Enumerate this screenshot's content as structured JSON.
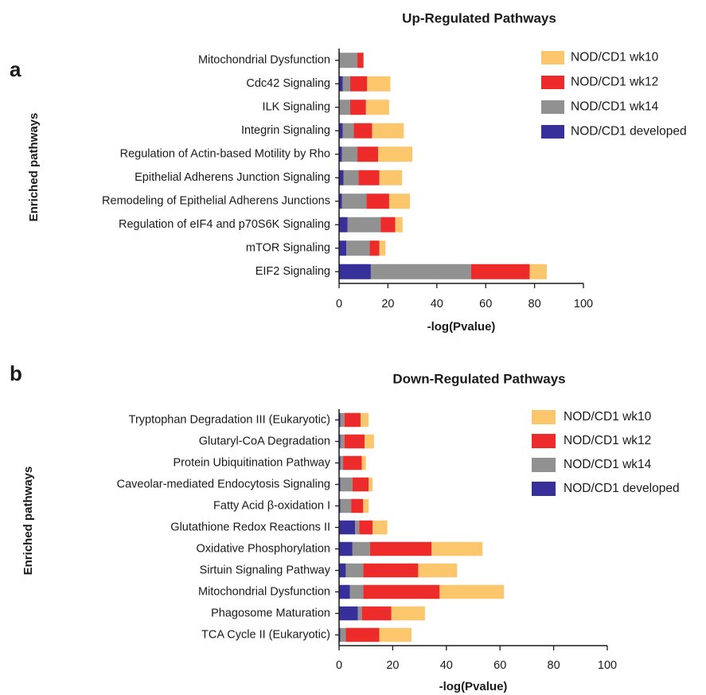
{
  "colors": {
    "NOD/CD1 developed": "#38309a",
    "NOD/CD1 wk14": "#919191",
    "NOD/CD1 wk12": "#ee2b2b",
    "NOD/CD1 wk10": "#fcc66c",
    "axis": "#1a1a1a"
  },
  "chart_data": [
    {
      "type": "bar",
      "orientation": "horizontal",
      "stacked": true,
      "panel_label": "a",
      "title": "Up-Regulated Pathways",
      "xlabel": "-log(Pvalue)",
      "ylabel": "Enriched pathways",
      "xlim": [
        0,
        100
      ],
      "xticks": [
        0,
        20,
        40,
        60,
        80,
        100
      ],
      "legend_position": "top-right",
      "legend_order": [
        "NOD/CD1 wk10",
        "NOD/CD1 wk12",
        "NOD/CD1 wk14",
        "NOD/CD1 developed"
      ],
      "categories": [
        "Mitochondrial Dysfunction",
        "Cdc42 Signaling",
        "ILK Signaling",
        "Integrin Signaling",
        "Regulation of Actin-based Motility by Rho",
        "Epithelial Adherens Junction Signaling",
        "Remodeling of Epithelial Adherens Junctions",
        "Regulation of eIF4 and p70S6K Signaling",
        "mTOR Signaling",
        "EIF2 Signaling"
      ],
      "series": [
        {
          "name": "NOD/CD1 developed",
          "values": [
            0,
            1.5,
            0,
            1.5,
            1.2,
            1.8,
            1.2,
            3.5,
            3,
            13
          ]
        },
        {
          "name": "NOD/CD1 wk14",
          "values": [
            7.5,
            3,
            4.5,
            4.5,
            6.3,
            6.2,
            10,
            13.5,
            9.5,
            41
          ]
        },
        {
          "name": "NOD/CD1 wk12",
          "values": [
            2.5,
            7,
            6.5,
            7.5,
            8.5,
            8.5,
            9.3,
            6,
            4,
            24
          ]
        },
        {
          "name": "NOD/CD1 wk10",
          "values": [
            0,
            9.5,
            9.5,
            13,
            14,
            9.3,
            8.5,
            3,
            2.5,
            7
          ]
        }
      ]
    },
    {
      "type": "bar",
      "orientation": "horizontal",
      "stacked": true,
      "panel_label": "b",
      "title": "Down-Regulated Pathways",
      "xlabel": "-log(Pvalue)",
      "ylabel": "Enriched pathways",
      "xlim": [
        0,
        100
      ],
      "xticks": [
        0,
        20,
        40,
        60,
        80,
        100
      ],
      "legend_position": "top-right",
      "legend_order": [
        "NOD/CD1 wk10",
        "NOD/CD1 wk12",
        "NOD/CD1 wk14",
        "NOD/CD1 developed"
      ],
      "categories": [
        "Tryptophan Degradation III (Eukaryotic)",
        "Glutaryl-CoA Degradation",
        "Protein Ubiquitination Pathway",
        "Caveolar-mediated Endocytosis Signaling",
        "Fatty Acid β-oxidation I",
        "Glutathione Redox Reactions II",
        "Oxidative Phosphorylation",
        "Sirtuin Signaling Pathway",
        "Mitochondrial Dysfunction",
        "Phagosome Maturation",
        "TCA Cycle II (Eukaryotic)"
      ],
      "series": [
        {
          "name": "NOD/CD1 developed",
          "values": [
            0.5,
            0.5,
            0.5,
            0.5,
            0.5,
            6,
            5,
            2.5,
            4,
            7,
            0.5
          ]
        },
        {
          "name": "NOD/CD1 wk14",
          "values": [
            1.5,
            1.5,
            1,
            4.5,
            4,
            1.5,
            6.5,
            6.5,
            5,
            1.5,
            2
          ]
        },
        {
          "name": "NOD/CD1 wk12",
          "values": [
            6,
            7.5,
            7,
            6,
            4.5,
            5,
            23,
            20.5,
            28.5,
            11,
            12.5
          ]
        },
        {
          "name": "NOD/CD1 wk10",
          "values": [
            3,
            3.5,
            1.5,
            1.5,
            2,
            5.5,
            19,
            14.5,
            24,
            12.5,
            12
          ]
        }
      ]
    }
  ]
}
